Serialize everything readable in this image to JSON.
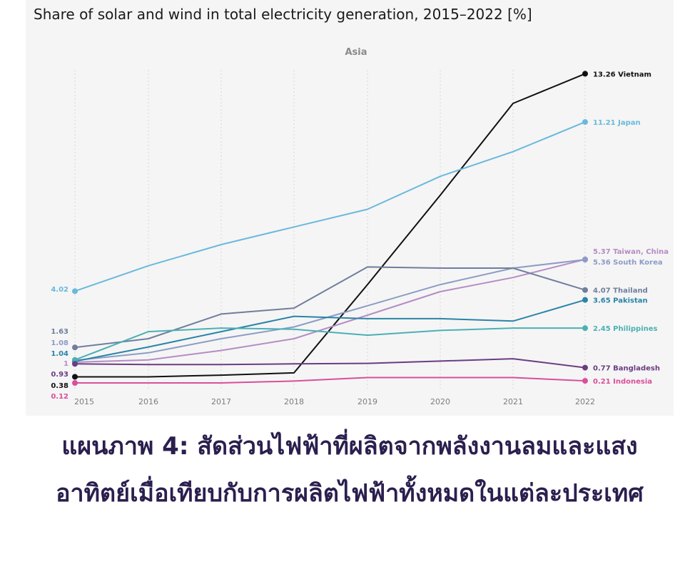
{
  "chart_data": {
    "type": "line",
    "title": "Share of solar and wind in total electricity generation, 2015–2022 [%]",
    "subtitle": "Asia",
    "x": [
      "2015",
      "2016",
      "2017",
      "2018",
      "2019",
      "2020",
      "2021",
      "2022"
    ],
    "grid": "vertical dotted",
    "series": [
      {
        "name": "Vietnam",
        "color": "#111111",
        "values": [
          0.38,
          0.38,
          0.45,
          0.55,
          4.3,
          8.1,
          12.0,
          13.26
        ],
        "start_label": "0.38",
        "end_label": "13.26"
      },
      {
        "name": "Japan",
        "color": "#6ab9dc",
        "values": [
          4.02,
          5.1,
          6.0,
          6.75,
          7.5,
          8.9,
          9.95,
          11.21
        ],
        "start_label": "4.02",
        "end_label": "11.21"
      },
      {
        "name": "Taiwan, China",
        "color": "#b58cc4",
        "values": [
          1.0,
          1.1,
          1.5,
          2.0,
          3.0,
          4.0,
          4.6,
          5.37
        ],
        "start_label": "1",
        "end_label": "5.37"
      },
      {
        "name": "South Korea",
        "color": "#8d9cc6",
        "values": [
          1.08,
          1.4,
          2.0,
          2.5,
          3.4,
          4.3,
          5.0,
          5.36
        ],
        "start_label": "1.08",
        "end_label": "5.36"
      },
      {
        "name": "Thailand",
        "color": "#6f7e9c",
        "values": [
          1.63,
          2.0,
          3.05,
          3.3,
          5.05,
          5.0,
          5.0,
          4.07
        ],
        "start_label": "1.63",
        "end_label": "4.07"
      },
      {
        "name": "Pakistan",
        "color": "#2a84a8",
        "values": [
          1.04,
          1.65,
          2.3,
          2.95,
          2.85,
          2.85,
          2.75,
          3.65
        ],
        "start_label": "1.04",
        "end_label": "3.65"
      },
      {
        "name": "Philippines",
        "color": "#4bb0b4",
        "values": [
          1.1,
          2.3,
          2.45,
          2.4,
          2.15,
          2.35,
          2.45,
          2.45
        ],
        "start_label": "",
        "end_label": "2.45"
      },
      {
        "name": "Bangladesh",
        "color": "#6b3d82",
        "values": [
          0.93,
          0.9,
          0.9,
          0.93,
          0.95,
          1.05,
          1.15,
          0.77
        ],
        "start_label": "0.93",
        "end_label": "0.77"
      },
      {
        "name": "Indonesia",
        "color": "#d94f9a",
        "values": [
          0.12,
          0.12,
          0.12,
          0.2,
          0.35,
          0.35,
          0.35,
          0.21
        ],
        "start_label": "0.12",
        "end_label": "0.21"
      }
    ]
  },
  "caption": "แผนภาพ 4: สัดส่วนไฟฟ้าที่ผลิตจากพลังงานลมและแสงอาทิตย์เมื่อเทียบกับการผลิตไฟฟ้าทั้งหมดในแต่ละประเทศ"
}
